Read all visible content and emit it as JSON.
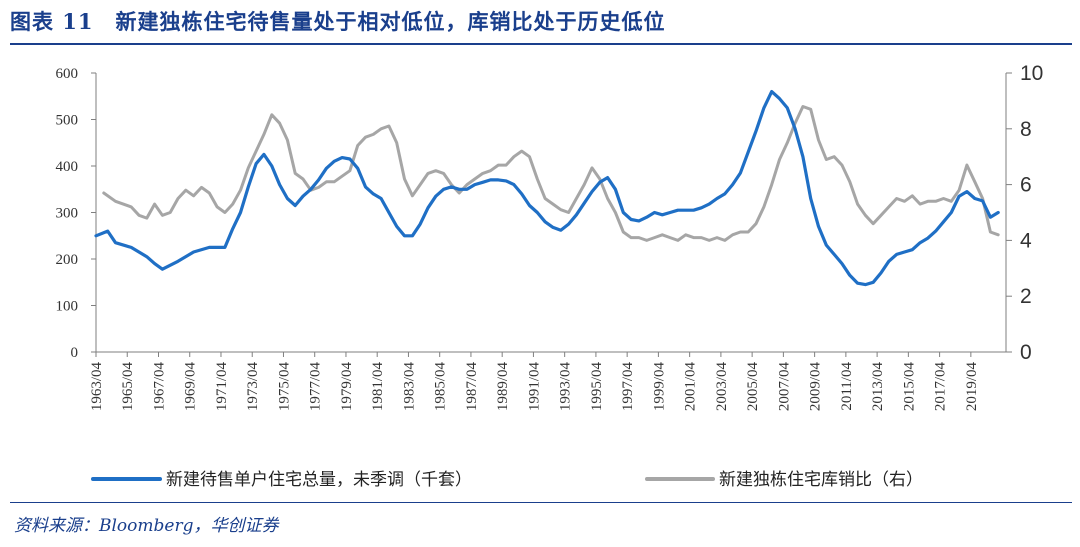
{
  "figure": {
    "title": "图表 11　新建独栋住宅待售量处于相对低位，库销比处于历史低位",
    "source": "资料来源：Bloomberg，华创证券"
  },
  "colors": {
    "primary": "#1f6fc5",
    "secondary": "#a6a6a6",
    "axis": "#7f7f7f",
    "heading": "#1a3f8c"
  },
  "chart_data": {
    "type": "line",
    "title": "",
    "x_ticks": [
      "1963/04",
      "1965/04",
      "1967/04",
      "1969/04",
      "1971/04",
      "1973/04",
      "1975/04",
      "1977/04",
      "1979/04",
      "1981/04",
      "1983/04",
      "1985/04",
      "1987/04",
      "1989/04",
      "1991/04",
      "1993/04",
      "1995/04",
      "1997/04",
      "1999/04",
      "2001/04",
      "2003/04",
      "2005/04",
      "2007/04",
      "2009/04",
      "2011/04",
      "2013/04",
      "2015/04",
      "2017/04",
      "2019/04"
    ],
    "y_left": {
      "ticks": [
        "0",
        "100",
        "200",
        "300",
        "400",
        "500",
        "600"
      ],
      "range": [
        0,
        600
      ]
    },
    "y_right": {
      "ticks": [
        "0",
        "2",
        "4",
        "6",
        "8",
        "10"
      ],
      "range": [
        0,
        10
      ]
    },
    "series": [
      {
        "name": "新建待售单户住宅总量，未季调（千套）",
        "axis": "left",
        "color": "#1f6fc5",
        "points": [
          [
            1963.25,
            250
          ],
          [
            1964.0,
            260
          ],
          [
            1964.5,
            235
          ],
          [
            1965.5,
            225
          ],
          [
            1966.5,
            205
          ],
          [
            1967.0,
            190
          ],
          [
            1967.5,
            178
          ],
          [
            1968.5,
            195
          ],
          [
            1969.5,
            215
          ],
          [
            1970.5,
            225
          ],
          [
            1971.5,
            225
          ],
          [
            1972.0,
            265
          ],
          [
            1972.5,
            300
          ],
          [
            1973.0,
            355
          ],
          [
            1973.5,
            405
          ],
          [
            1974.0,
            425
          ],
          [
            1974.5,
            400
          ],
          [
            1975.0,
            360
          ],
          [
            1975.5,
            330
          ],
          [
            1976.0,
            315
          ],
          [
            1976.5,
            335
          ],
          [
            1977.0,
            350
          ],
          [
            1977.5,
            370
          ],
          [
            1978.0,
            395
          ],
          [
            1978.5,
            410
          ],
          [
            1979.0,
            418
          ],
          [
            1979.5,
            415
          ],
          [
            1980.0,
            395
          ],
          [
            1980.5,
            355
          ],
          [
            1981.0,
            340
          ],
          [
            1981.5,
            330
          ],
          [
            1982.0,
            300
          ],
          [
            1982.5,
            270
          ],
          [
            1983.0,
            250
          ],
          [
            1983.5,
            250
          ],
          [
            1984.0,
            275
          ],
          [
            1984.5,
            310
          ],
          [
            1985.0,
            335
          ],
          [
            1985.5,
            350
          ],
          [
            1986.0,
            355
          ],
          [
            1986.5,
            350
          ],
          [
            1987.0,
            350
          ],
          [
            1987.5,
            360
          ],
          [
            1988.0,
            365
          ],
          [
            1988.5,
            370
          ],
          [
            1989.0,
            370
          ],
          [
            1989.5,
            368
          ],
          [
            1990.0,
            360
          ],
          [
            1990.5,
            340
          ],
          [
            1991.0,
            315
          ],
          [
            1991.5,
            300
          ],
          [
            1992.0,
            280
          ],
          [
            1992.5,
            268
          ],
          [
            1993.0,
            262
          ],
          [
            1993.5,
            275
          ],
          [
            1994.0,
            295
          ],
          [
            1994.5,
            320
          ],
          [
            1995.0,
            345
          ],
          [
            1995.5,
            365
          ],
          [
            1996.0,
            375
          ],
          [
            1996.5,
            350
          ],
          [
            1997.0,
            300
          ],
          [
            1997.5,
            285
          ],
          [
            1998.0,
            282
          ],
          [
            1998.5,
            290
          ],
          [
            1999.0,
            300
          ],
          [
            1999.5,
            295
          ],
          [
            2000.0,
            300
          ],
          [
            2000.5,
            305
          ],
          [
            2001.0,
            305
          ],
          [
            2001.5,
            305
          ],
          [
            2002.0,
            310
          ],
          [
            2002.5,
            318
          ],
          [
            2003.0,
            330
          ],
          [
            2003.5,
            340
          ],
          [
            2004.0,
            360
          ],
          [
            2004.5,
            385
          ],
          [
            2005.0,
            430
          ],
          [
            2005.5,
            475
          ],
          [
            2006.0,
            525
          ],
          [
            2006.5,
            560
          ],
          [
            2007.0,
            545
          ],
          [
            2007.5,
            525
          ],
          [
            2008.0,
            480
          ],
          [
            2008.5,
            420
          ],
          [
            2009.0,
            330
          ],
          [
            2009.5,
            270
          ],
          [
            2010.0,
            230
          ],
          [
            2010.5,
            210
          ],
          [
            2011.0,
            190
          ],
          [
            2011.5,
            165
          ],
          [
            2012.0,
            148
          ],
          [
            2012.5,
            145
          ],
          [
            2013.0,
            150
          ],
          [
            2013.5,
            170
          ],
          [
            2014.0,
            195
          ],
          [
            2014.5,
            210
          ],
          [
            2015.0,
            215
          ],
          [
            2015.5,
            220
          ],
          [
            2016.0,
            235
          ],
          [
            2016.5,
            245
          ],
          [
            2017.0,
            260
          ],
          [
            2017.5,
            280
          ],
          [
            2018.0,
            300
          ],
          [
            2018.5,
            335
          ],
          [
            2019.0,
            345
          ],
          [
            2019.5,
            330
          ],
          [
            2020.0,
            325
          ],
          [
            2020.5,
            290
          ],
          [
            2021.0,
            300
          ]
        ]
      },
      {
        "name": "新建独栋住宅库销比（右）",
        "axis": "right",
        "color": "#a6a6a6",
        "points": [
          [
            1963.75,
            5.7
          ],
          [
            1964.5,
            5.4
          ],
          [
            1965.5,
            5.2
          ],
          [
            1966.0,
            4.9
          ],
          [
            1966.5,
            4.8
          ],
          [
            1967.0,
            5.3
          ],
          [
            1967.5,
            4.9
          ],
          [
            1968.0,
            5.0
          ],
          [
            1968.5,
            5.5
          ],
          [
            1969.0,
            5.8
          ],
          [
            1969.5,
            5.6
          ],
          [
            1970.0,
            5.9
          ],
          [
            1970.5,
            5.7
          ],
          [
            1971.0,
            5.2
          ],
          [
            1971.5,
            5.0
          ],
          [
            1972.0,
            5.3
          ],
          [
            1972.5,
            5.8
          ],
          [
            1973.0,
            6.6
          ],
          [
            1973.5,
            7.2
          ],
          [
            1974.0,
            7.8
          ],
          [
            1974.5,
            8.5
          ],
          [
            1975.0,
            8.2
          ],
          [
            1975.5,
            7.6
          ],
          [
            1976.0,
            6.4
          ],
          [
            1976.5,
            6.2
          ],
          [
            1977.0,
            5.8
          ],
          [
            1977.5,
            5.9
          ],
          [
            1978.0,
            6.1
          ],
          [
            1978.5,
            6.1
          ],
          [
            1979.0,
            6.3
          ],
          [
            1979.5,
            6.5
          ],
          [
            1980.0,
            7.4
          ],
          [
            1980.5,
            7.7
          ],
          [
            1981.0,
            7.8
          ],
          [
            1981.5,
            8.0
          ],
          [
            1982.0,
            8.1
          ],
          [
            1982.5,
            7.5
          ],
          [
            1983.0,
            6.2
          ],
          [
            1983.5,
            5.6
          ],
          [
            1984.0,
            6.0
          ],
          [
            1984.5,
            6.4
          ],
          [
            1985.0,
            6.5
          ],
          [
            1985.5,
            6.4
          ],
          [
            1986.0,
            6.0
          ],
          [
            1986.5,
            5.7
          ],
          [
            1987.0,
            6.0
          ],
          [
            1987.5,
            6.2
          ],
          [
            1988.0,
            6.4
          ],
          [
            1988.5,
            6.5
          ],
          [
            1989.0,
            6.7
          ],
          [
            1989.5,
            6.7
          ],
          [
            1990.0,
            7.0
          ],
          [
            1990.5,
            7.2
          ],
          [
            1991.0,
            7.0
          ],
          [
            1991.5,
            6.2
          ],
          [
            1992.0,
            5.5
          ],
          [
            1992.5,
            5.3
          ],
          [
            1993.0,
            5.1
          ],
          [
            1993.5,
            5.0
          ],
          [
            1994.0,
            5.5
          ],
          [
            1994.5,
            6.0
          ],
          [
            1995.0,
            6.6
          ],
          [
            1995.5,
            6.2
          ],
          [
            1996.0,
            5.5
          ],
          [
            1996.5,
            5.0
          ],
          [
            1997.0,
            4.3
          ],
          [
            1997.5,
            4.1
          ],
          [
            1998.0,
            4.1
          ],
          [
            1998.5,
            4.0
          ],
          [
            1999.0,
            4.1
          ],
          [
            1999.5,
            4.2
          ],
          [
            2000.0,
            4.1
          ],
          [
            2000.5,
            4.0
          ],
          [
            2001.0,
            4.2
          ],
          [
            2001.5,
            4.1
          ],
          [
            2002.0,
            4.1
          ],
          [
            2002.5,
            4.0
          ],
          [
            2003.0,
            4.1
          ],
          [
            2003.5,
            4.0
          ],
          [
            2004.0,
            4.2
          ],
          [
            2004.5,
            4.3
          ],
          [
            2005.0,
            4.3
          ],
          [
            2005.5,
            4.6
          ],
          [
            2006.0,
            5.2
          ],
          [
            2006.5,
            6.0
          ],
          [
            2007.0,
            6.9
          ],
          [
            2007.5,
            7.5
          ],
          [
            2008.0,
            8.2
          ],
          [
            2008.5,
            8.8
          ],
          [
            2009.0,
            8.7
          ],
          [
            2009.5,
            7.6
          ],
          [
            2010.0,
            6.9
          ],
          [
            2010.5,
            7.0
          ],
          [
            2011.0,
            6.7
          ],
          [
            2011.5,
            6.1
          ],
          [
            2012.0,
            5.3
          ],
          [
            2012.5,
            4.9
          ],
          [
            2013.0,
            4.6
          ],
          [
            2013.5,
            4.9
          ],
          [
            2014.0,
            5.2
          ],
          [
            2014.5,
            5.5
          ],
          [
            2015.0,
            5.4
          ],
          [
            2015.5,
            5.6
          ],
          [
            2016.0,
            5.3
          ],
          [
            2016.5,
            5.4
          ],
          [
            2017.0,
            5.4
          ],
          [
            2017.5,
            5.5
          ],
          [
            2018.0,
            5.4
          ],
          [
            2018.5,
            5.8
          ],
          [
            2019.0,
            6.7
          ],
          [
            2019.5,
            6.1
          ],
          [
            2020.0,
            5.5
          ],
          [
            2020.5,
            4.3
          ],
          [
            2021.0,
            4.2
          ]
        ]
      }
    ],
    "legend": [
      "新建待售单户住宅总量，未季调（千套）",
      "新建独栋住宅库销比（右）"
    ],
    "legend_position": "bottom"
  }
}
